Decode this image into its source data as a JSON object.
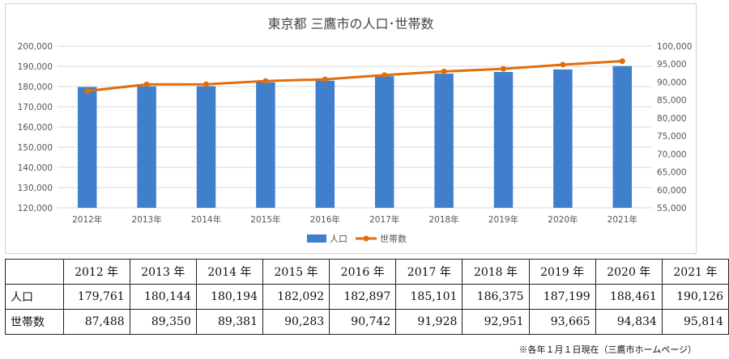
{
  "chart_data": {
    "type": "bar+line",
    "title": "東京都 三鷹市の人口･世帯数",
    "categories": [
      "2012年",
      "2013年",
      "2014年",
      "2015年",
      "2016年",
      "2017年",
      "2018年",
      "2019年",
      "2020年",
      "2021年"
    ],
    "series": [
      {
        "name": "人口",
        "type": "bar",
        "axis": "left",
        "color": "#3f7fcb",
        "values": [
          179761,
          180144,
          180194,
          182092,
          182897,
          185101,
          186375,
          187199,
          188461,
          190126
        ]
      },
      {
        "name": "世帯数",
        "type": "line",
        "axis": "right",
        "color": "#e36c0a",
        "values": [
          87488,
          89350,
          89381,
          90283,
          90742,
          91928,
          92951,
          93665,
          94834,
          95814
        ]
      }
    ],
    "y_left": {
      "min": 120000,
      "max": 200000,
      "step": 10000,
      "tick_labels": [
        "120,000",
        "130,000",
        "140,000",
        "150,000",
        "160,000",
        "170,000",
        "180,000",
        "190,000",
        "200,000"
      ]
    },
    "y_right": {
      "min": 55000,
      "max": 100000,
      "step": 5000,
      "tick_labels": [
        "55,000",
        "60,000",
        "65,000",
        "70,000",
        "75,000",
        "80,000",
        "85,000",
        "90,000",
        "95,000",
        "100,000"
      ]
    },
    "grid": true,
    "legend": "bottom"
  },
  "table": {
    "years": [
      "2012 年",
      "2013 年",
      "2014 年",
      "2015 年",
      "2016 年",
      "2017 年",
      "2018 年",
      "2019 年",
      "2020 年",
      "2021 年"
    ],
    "rows": [
      {
        "label": "人口",
        "values": [
          "179,761",
          "180,144",
          "180,194",
          "182,092",
          "182,897",
          "185,101",
          "186,375",
          "187,199",
          "188,461",
          "190,126"
        ]
      },
      {
        "label": "世帯数",
        "values": [
          "87,488",
          "89,350",
          "89,381",
          "90,283",
          "90,742",
          "91,928",
          "92,951",
          "93,665",
          "94,834",
          "95,814"
        ]
      }
    ]
  },
  "footnote": "※各年１月１日現在（三鷹市ホームページ）"
}
